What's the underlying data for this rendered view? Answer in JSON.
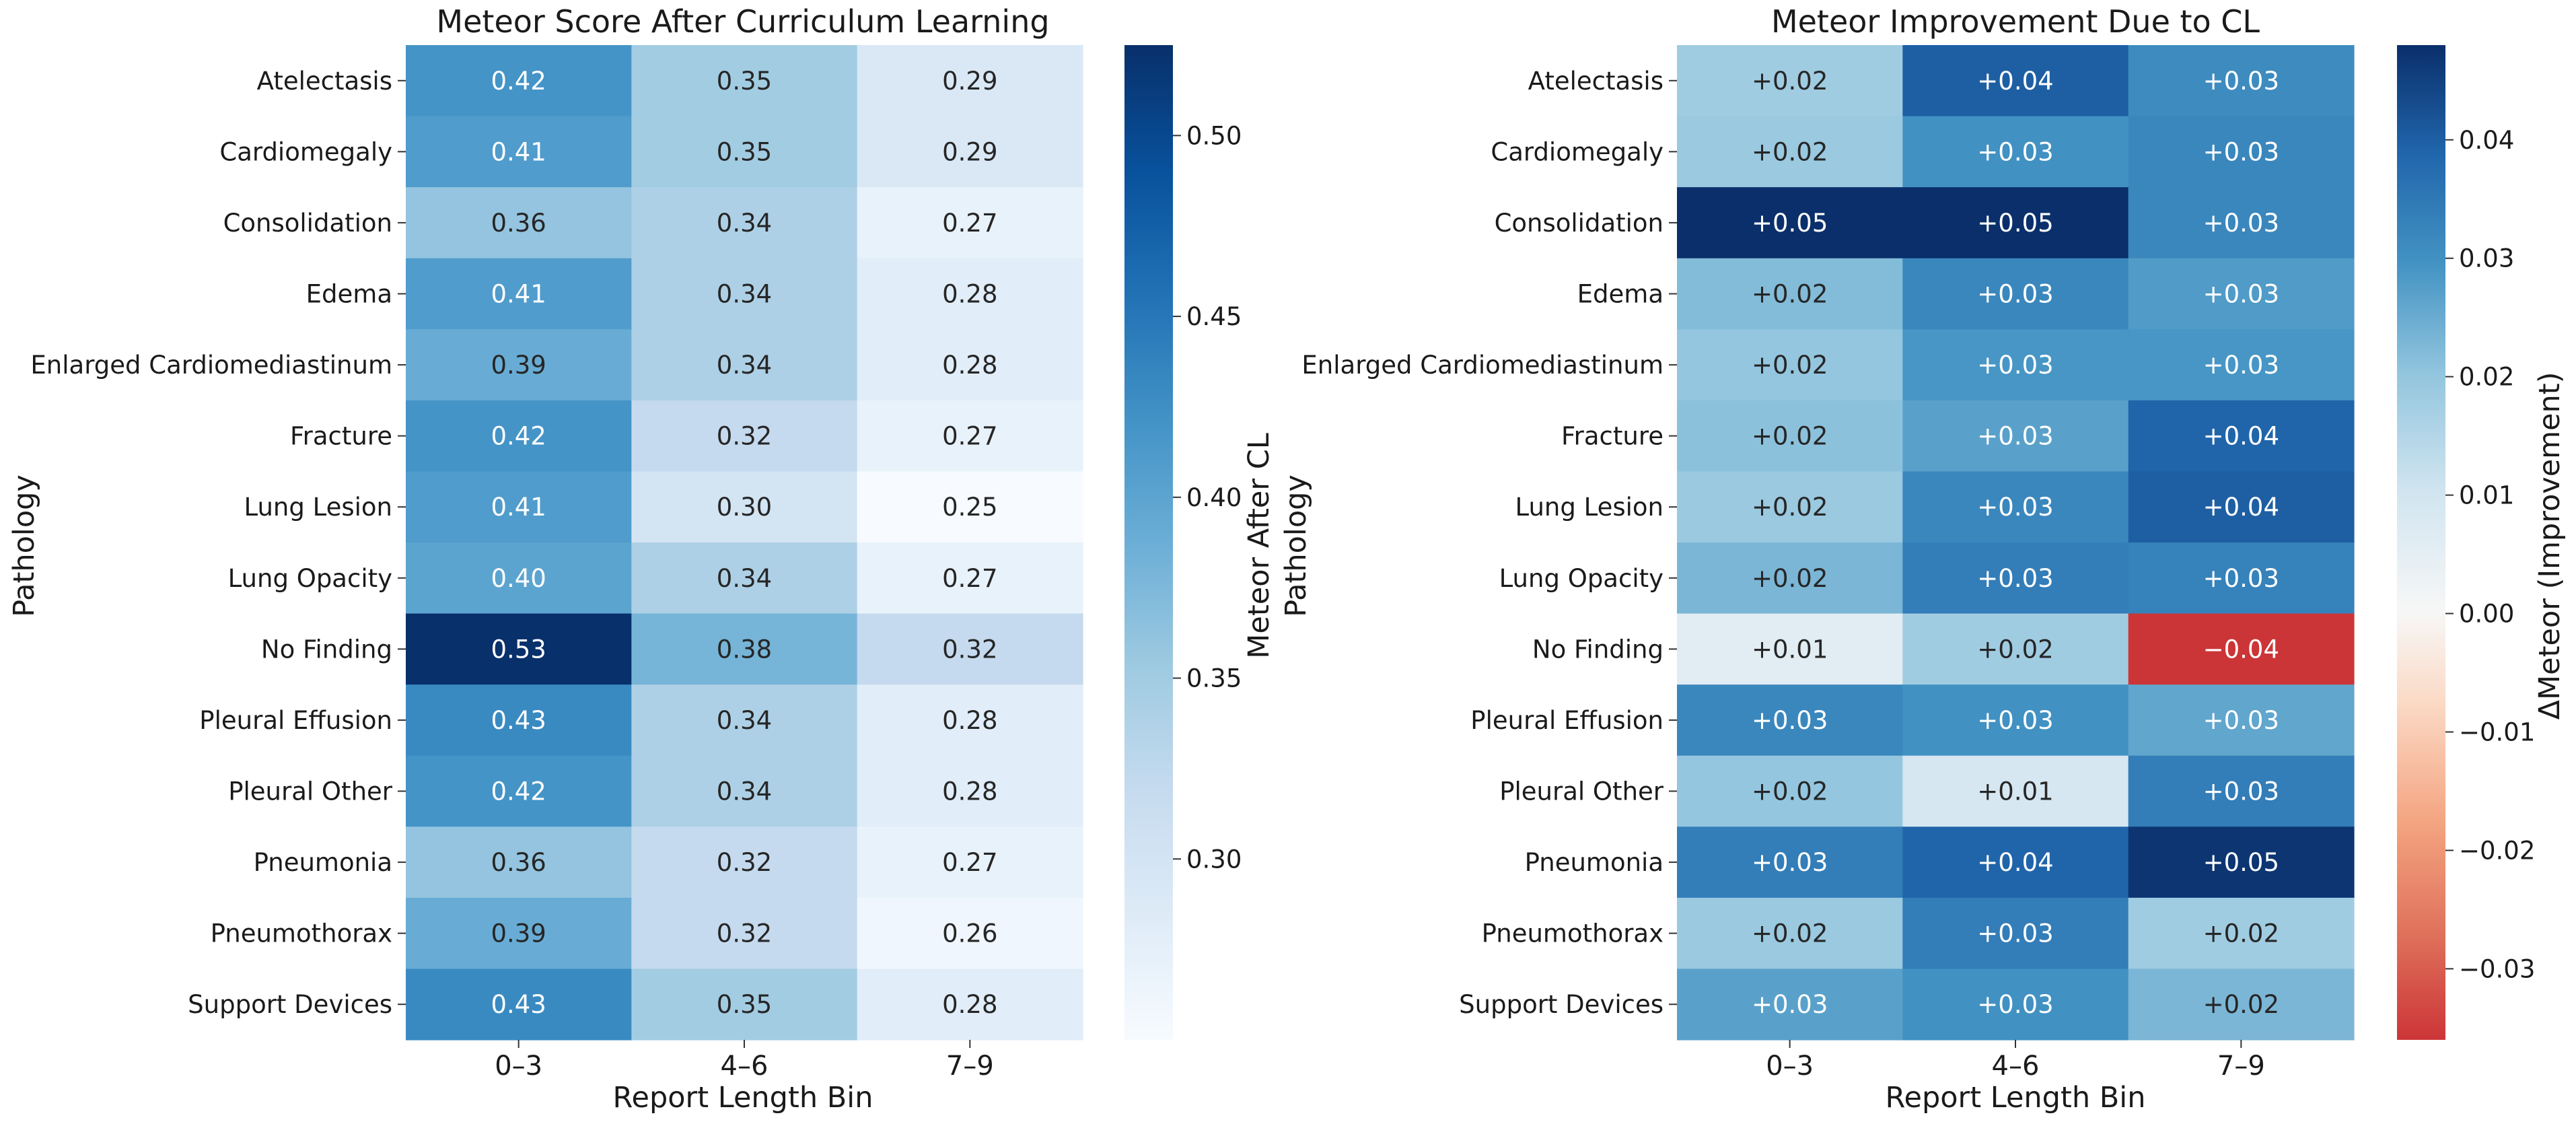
{
  "chart_data": [
    {
      "type": "heatmap",
      "title": "Meteor Score After Curriculum Learning",
      "xlabel": "Report Length Bin",
      "ylabel": "Pathology",
      "x_categories": [
        "0–3",
        "4–6",
        "7–9"
      ],
      "y_categories": [
        "Atelectasis",
        "Cardiomegaly",
        "Consolidation",
        "Edema",
        "Enlarged Cardiomediastinum",
        "Fracture",
        "Lung Lesion",
        "Lung Opacity",
        "No Finding",
        "Pleural Effusion",
        "Pleural Other",
        "Pneumonia",
        "Pneumothorax",
        "Support Devices"
      ],
      "values": [
        [
          0.42,
          0.35,
          0.29
        ],
        [
          0.41,
          0.35,
          0.29
        ],
        [
          0.36,
          0.34,
          0.27
        ],
        [
          0.41,
          0.34,
          0.28
        ],
        [
          0.39,
          0.34,
          0.28
        ],
        [
          0.42,
          0.32,
          0.27
        ],
        [
          0.41,
          0.3,
          0.25
        ],
        [
          0.4,
          0.34,
          0.27
        ],
        [
          0.53,
          0.38,
          0.32
        ],
        [
          0.43,
          0.34,
          0.28
        ],
        [
          0.42,
          0.34,
          0.28
        ],
        [
          0.36,
          0.32,
          0.27
        ],
        [
          0.39,
          0.32,
          0.26
        ],
        [
          0.43,
          0.35,
          0.28
        ]
      ],
      "cell_labels": [
        [
          "0.42",
          "0.35",
          "0.29"
        ],
        [
          "0.41",
          "0.35",
          "0.29"
        ],
        [
          "0.36",
          "0.34",
          "0.27"
        ],
        [
          "0.41",
          "0.34",
          "0.28"
        ],
        [
          "0.39",
          "0.34",
          "0.28"
        ],
        [
          "0.42",
          "0.32",
          "0.27"
        ],
        [
          "0.41",
          "0.30",
          "0.25"
        ],
        [
          "0.40",
          "0.34",
          "0.27"
        ],
        [
          "0.53",
          "0.38",
          "0.32"
        ],
        [
          "0.43",
          "0.34",
          "0.28"
        ],
        [
          "0.42",
          "0.34",
          "0.28"
        ],
        [
          "0.36",
          "0.32",
          "0.27"
        ],
        [
          "0.39",
          "0.32",
          "0.26"
        ],
        [
          "0.43",
          "0.35",
          "0.28"
        ]
      ],
      "colormap": "Blues",
      "colorbar": {
        "label": "Meteor After CL",
        "range": [
          0.25,
          0.525
        ],
        "ticks": [
          0.3,
          0.35,
          0.4,
          0.45,
          0.5
        ],
        "tick_labels": [
          "0.30",
          "0.35",
          "0.40",
          "0.45",
          "0.50"
        ]
      }
    },
    {
      "type": "heatmap",
      "title": "Meteor Improvement Due to CL",
      "xlabel": "Report Length Bin",
      "ylabel": "Pathology",
      "x_categories": [
        "0–3",
        "4–6",
        "7–9"
      ],
      "y_categories": [
        "Atelectasis",
        "Cardiomegaly",
        "Consolidation",
        "Edema",
        "Enlarged Cardiomediastinum",
        "Fracture",
        "Lung Lesion",
        "Lung Opacity",
        "No Finding",
        "Pleural Effusion",
        "Pleural Other",
        "Pneumonia",
        "Pneumothorax",
        "Support Devices"
      ],
      "values": [
        [
          0.018,
          0.04,
          0.031
        ],
        [
          0.019,
          0.03,
          0.032
        ],
        [
          0.048,
          0.048,
          0.032
        ],
        [
          0.022,
          0.032,
          0.028
        ],
        [
          0.02,
          0.029,
          0.029
        ],
        [
          0.021,
          0.027,
          0.039
        ],
        [
          0.019,
          0.032,
          0.04
        ],
        [
          0.023,
          0.034,
          0.033
        ],
        [
          0.006,
          0.018,
          -0.036
        ],
        [
          0.032,
          0.03,
          0.026
        ],
        [
          0.02,
          0.009,
          0.034
        ],
        [
          0.034,
          0.039,
          0.047
        ],
        [
          0.019,
          0.034,
          0.018
        ],
        [
          0.027,
          0.03,
          0.023
        ]
      ],
      "cell_labels": [
        [
          "+0.02",
          "+0.04",
          "+0.03"
        ],
        [
          "+0.02",
          "+0.03",
          "+0.03"
        ],
        [
          "+0.05",
          "+0.05",
          "+0.03"
        ],
        [
          "+0.02",
          "+0.03",
          "+0.03"
        ],
        [
          "+0.02",
          "+0.03",
          "+0.03"
        ],
        [
          "+0.02",
          "+0.03",
          "+0.04"
        ],
        [
          "+0.02",
          "+0.03",
          "+0.04"
        ],
        [
          "+0.02",
          "+0.03",
          "+0.03"
        ],
        [
          "+0.01",
          "+0.02",
          "−0.04"
        ],
        [
          "+0.03",
          "+0.03",
          "+0.03"
        ],
        [
          "+0.02",
          "+0.01",
          "+0.03"
        ],
        [
          "+0.03",
          "+0.04",
          "+0.05"
        ],
        [
          "+0.02",
          "+0.03",
          "+0.02"
        ],
        [
          "+0.03",
          "+0.03",
          "+0.02"
        ]
      ],
      "colormap": "RdBu (diverging, centered at 0)",
      "colorbar": {
        "label": "ΔMeteor (Improvement)",
        "range": [
          -0.036,
          0.048
        ],
        "ticks": [
          -0.03,
          -0.02,
          -0.01,
          0.0,
          0.01,
          0.02,
          0.03,
          0.04
        ],
        "tick_labels": [
          "−0.03",
          "−0.02",
          "−0.01",
          "0.00",
          "0.01",
          "0.02",
          "0.03",
          "0.04"
        ]
      }
    }
  ]
}
